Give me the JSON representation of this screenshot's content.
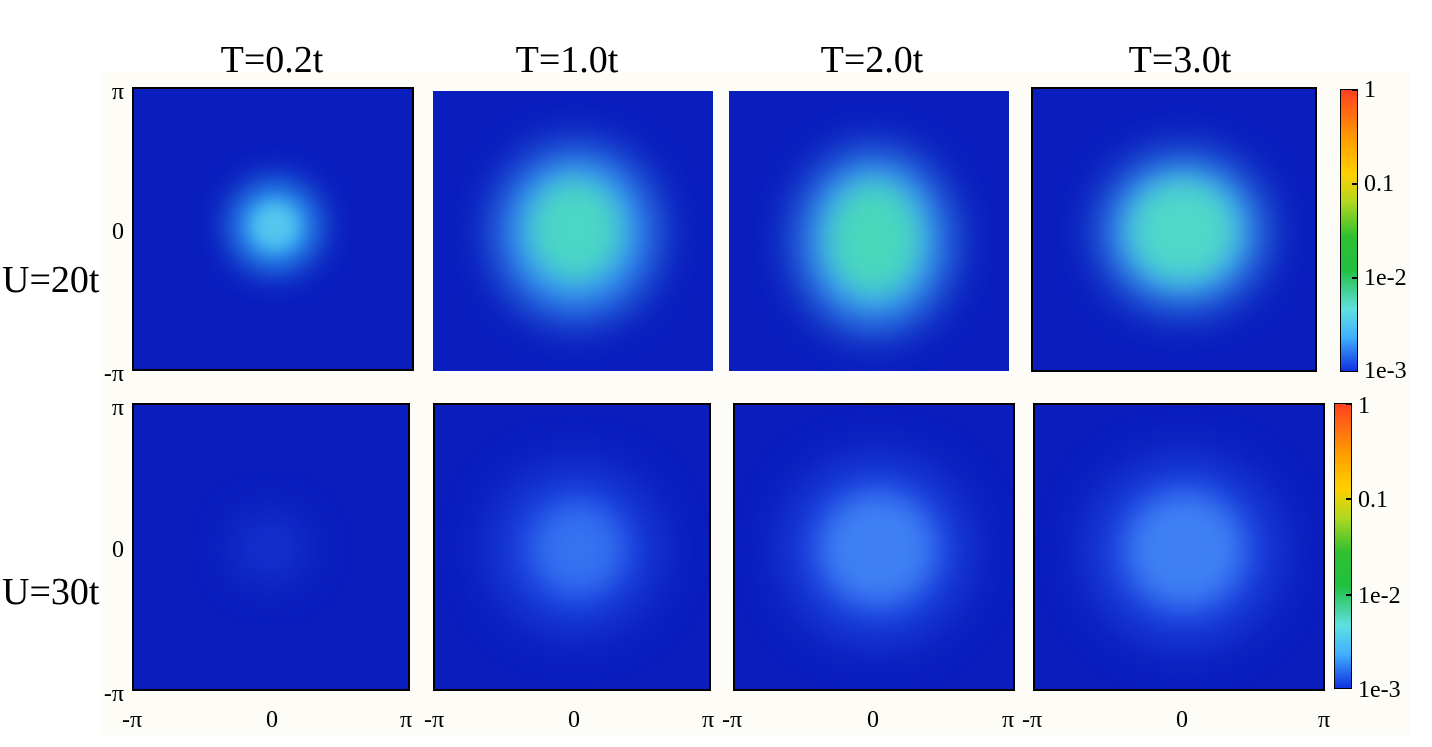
{
  "figure": {
    "column_titles": [
      "T=0.2t",
      "T=1.0t",
      "T=2.0t",
      "T=3.0t"
    ],
    "row_labels": [
      "U=20t",
      "U=30t"
    ],
    "y_ticks": [
      "π",
      "0",
      "-π"
    ],
    "x_ticks": [
      "-π",
      "0",
      "π"
    ],
    "colorbar_ticks": [
      "1",
      "0.1",
      "1e-2",
      "1e-3"
    ]
  },
  "chart_data": {
    "type": "heatmap",
    "title": "",
    "columns": [
      "T=0.2t",
      "T=1.0t",
      "T=2.0t",
      "T=3.0t"
    ],
    "rows": [
      "U=20t",
      "U=30t"
    ],
    "x_range": [
      "-π",
      "π"
    ],
    "y_range": [
      "-π",
      "π"
    ],
    "colorbar": {
      "scale": "log",
      "min": 0.001,
      "max": 1,
      "ticks": [
        "1",
        "0.1",
        "1e-2",
        "1e-3"
      ]
    },
    "panels": [
      {
        "row": "U=20t",
        "column": "T=0.2t",
        "peak_value": 0.002
      },
      {
        "row": "U=20t",
        "column": "T=1.0t",
        "peak_value": 0.005
      },
      {
        "row": "U=20t",
        "column": "T=2.0t",
        "peak_value": 0.005
      },
      {
        "row": "U=20t",
        "column": "T=3.0t",
        "peak_value": 0.004
      },
      {
        "row": "U=30t",
        "column": "T=0.2t",
        "peak_value": 0.001
      },
      {
        "row": "U=30t",
        "column": "T=1.0t",
        "peak_value": 0.0015
      },
      {
        "row": "U=30t",
        "column": "T=2.0t",
        "peak_value": 0.0018
      },
      {
        "row": "U=30t",
        "column": "T=3.0t",
        "peak_value": 0.0018
      }
    ],
    "colors": {
      "background": "#0a1ebe",
      "low": "#1030e0",
      "mid": "#20c040",
      "high": "#ff2010"
    }
  }
}
